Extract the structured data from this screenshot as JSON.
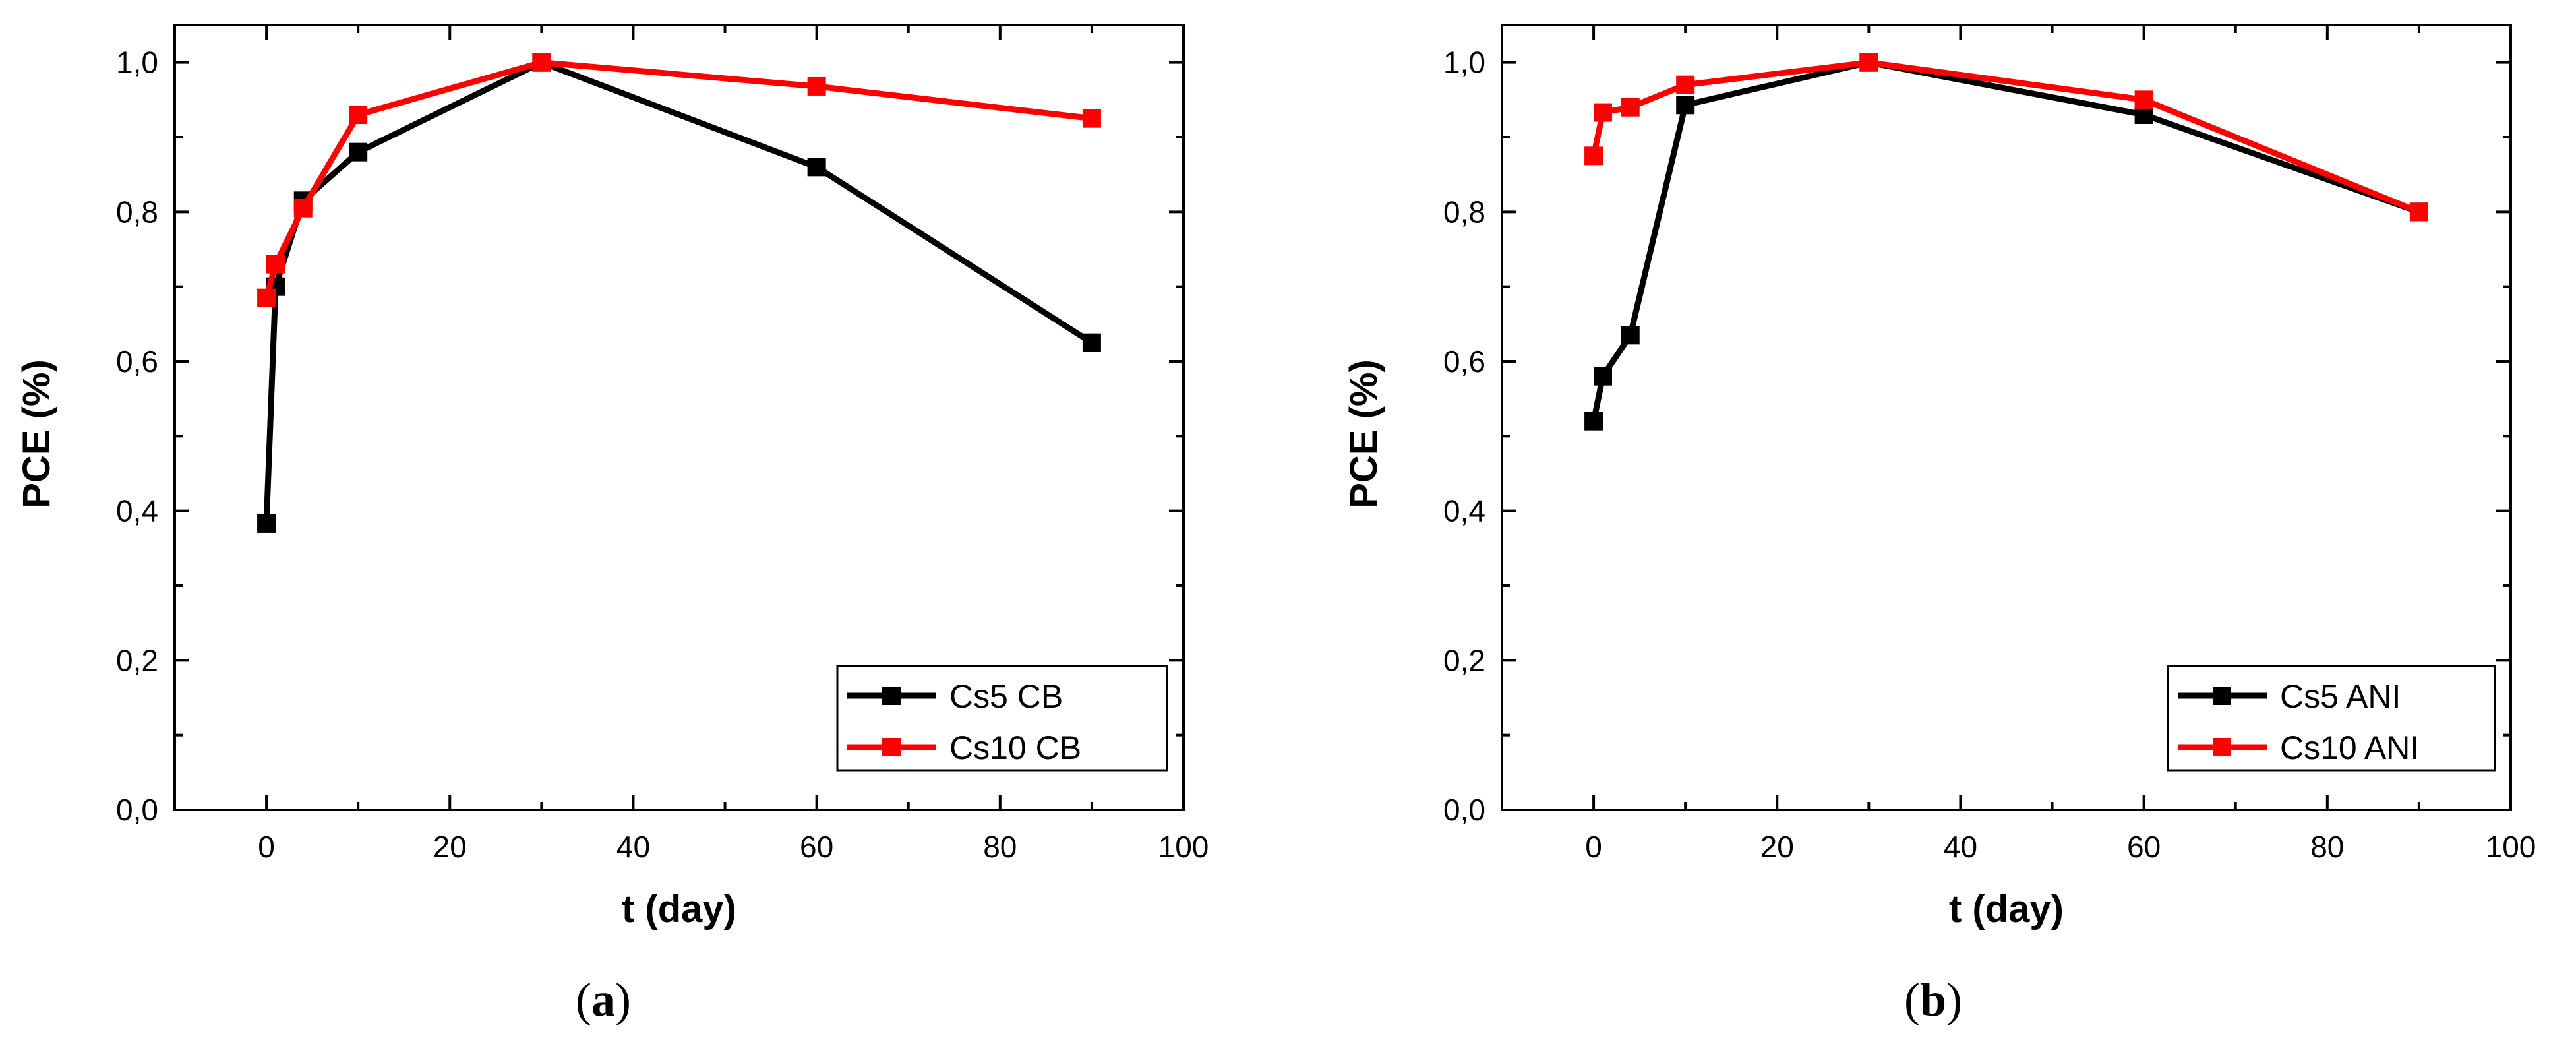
{
  "chart_data": [
    {
      "type": "line",
      "panel": "a",
      "xlabel": "t (day)",
      "ylabel": "PCE (%)",
      "xlim": [
        -10,
        100
      ],
      "ylim": [
        0,
        1.05
      ],
      "xticks": [
        0,
        20,
        40,
        60,
        80,
        100
      ],
      "xtick_labels": [
        "0",
        "20",
        "40",
        "60",
        "80",
        "100"
      ],
      "yticks": [
        0,
        0.2,
        0.4,
        0.6,
        0.8,
        1.0
      ],
      "ytick_labels": [
        "0,0",
        "0,2",
        "0,4",
        "0,6",
        "0,8",
        "1,0"
      ],
      "legend_position": "bottom-right",
      "series": [
        {
          "name": "Cs5 CB",
          "color": "#000000",
          "x": [
            0,
            1,
            4,
            10,
            30,
            60,
            90
          ],
          "values": [
            0.383,
            0.7,
            0.815,
            0.88,
            1.0,
            0.86,
            0.625
          ]
        },
        {
          "name": "Cs10 CB",
          "color": "#ff0000",
          "x": [
            0,
            1,
            4,
            10,
            30,
            60,
            90
          ],
          "values": [
            0.685,
            0.73,
            0.805,
            0.93,
            1.0,
            0.968,
            0.925
          ]
        }
      ],
      "caption": {
        "open": "(",
        "label": "a",
        "close": ")"
      }
    },
    {
      "type": "line",
      "panel": "b",
      "xlabel": "t (day)",
      "ylabel": "PCE (%)",
      "xlim": [
        -10,
        100
      ],
      "ylim": [
        0,
        1.05
      ],
      "xticks": [
        0,
        20,
        40,
        60,
        80,
        100
      ],
      "xtick_labels": [
        "0",
        "20",
        "40",
        "60",
        "80",
        "100"
      ],
      "yticks": [
        0,
        0.2,
        0.4,
        0.6,
        0.8,
        1.0
      ],
      "ytick_labels": [
        "0,0",
        "0,2",
        "0,4",
        "0,6",
        "0,8",
        "1,0"
      ],
      "legend_position": "bottom-right",
      "series": [
        {
          "name": "Cs5 ANI",
          "color": "#000000",
          "x": [
            0,
            1,
            4,
            10,
            30,
            60,
            90
          ],
          "values": [
            0.52,
            0.58,
            0.635,
            0.943,
            1.0,
            0.93,
            0.8
          ]
        },
        {
          "name": "Cs10 ANI",
          "color": "#ff0000",
          "x": [
            0,
            1,
            4,
            10,
            30,
            60,
            90
          ],
          "values": [
            0.875,
            0.933,
            0.94,
            0.97,
            1.0,
            0.95,
            0.8
          ]
        }
      ],
      "caption": {
        "open": "(",
        "label": "b",
        "close": ")"
      }
    }
  ]
}
